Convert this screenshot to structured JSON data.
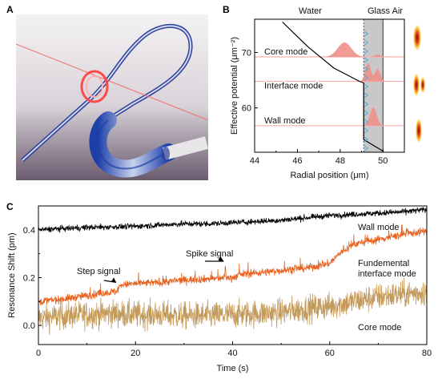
{
  "panels": {
    "a": "A",
    "b": "B",
    "c": "C"
  },
  "chart_data": [
    {
      "panel": "B",
      "type": "line",
      "xlabel": "Radial position (μm)",
      "ylabel": "Effective potential (μm⁻²)",
      "xlim": [
        44,
        51
      ],
      "ylim": [
        52,
        76
      ],
      "xticks": [
        "44",
        "46",
        "48",
        "50"
      ],
      "yticks": [
        "60",
        "70"
      ],
      "regions": [
        {
          "name": "Water",
          "x_range": [
            44,
            49.1
          ],
          "color": "#ffffff"
        },
        {
          "name": "Glass",
          "x_range": [
            49.1,
            50
          ],
          "color": "#c8c8c8"
        },
        {
          "name": "Air",
          "x_range": [
            50,
            51
          ],
          "color": "#ffffff"
        }
      ],
      "region_labels": [
        "Water",
        "Glass Air"
      ],
      "potential_curve": {
        "x": [
          45.3,
          46.5,
          47.7,
          48.9,
          49.1,
          49.1,
          50.0
        ],
        "y": [
          75.5,
          71.0,
          67.2,
          64.8,
          64.5,
          54.3,
          52.2
        ]
      },
      "mode_levels": [
        {
          "name": "Core mode",
          "y": 69.2,
          "peaks": [
            {
              "x": 48.2,
              "height": 2.6,
              "width": 0.45
            },
            {
              "x": 49.75,
              "height": 0.4,
              "width": 0.2
            }
          ]
        },
        {
          "name": "Interface mode",
          "y": 64.8,
          "peaks": [
            {
              "x": 49.3,
              "height": 3.3,
              "width": 0.18
            },
            {
              "x": 49.75,
              "height": 2.2,
              "width": 0.18
            }
          ]
        },
        {
          "name": "Wall mode",
          "y": 56.8,
          "peaks": [
            {
              "x": 49.55,
              "height": 3.3,
              "width": 0.22
            }
          ]
        }
      ],
      "colors": {
        "curve": "#000000",
        "mode_fill": "#f0908c",
        "mode_line": "#f4b0ac",
        "glass": "#c8c8c8",
        "markers": "#4aa8e0"
      }
    },
    {
      "panel": "C",
      "type": "line",
      "xlabel": "Time (s)",
      "ylabel": "Resonance Shift (pm)",
      "xlim": [
        0,
        80
      ],
      "ylim": [
        -0.08,
        0.5
      ],
      "xticks": [
        "0",
        "20",
        "40",
        "60",
        "80"
      ],
      "yticks": [
        "0.0",
        "0.2",
        "0.4"
      ],
      "series": [
        {
          "name": "Wall mode",
          "color": "#000000",
          "noise": 0.006,
          "x": [
            0,
            5,
            10,
            15,
            20,
            25,
            30,
            35,
            40,
            45,
            50,
            55,
            60,
            65,
            70,
            75,
            80
          ],
          "y": [
            0.4,
            0.405,
            0.41,
            0.412,
            0.415,
            0.42,
            0.425,
            0.425,
            0.43,
            0.435,
            0.44,
            0.45,
            0.46,
            0.465,
            0.47,
            0.475,
            0.485
          ]
        },
        {
          "name": "Fundemental interface mode",
          "color": "#e8601c",
          "noise": 0.008,
          "x": [
            0,
            5,
            10,
            15,
            16,
            17,
            20,
            25,
            30,
            35,
            40,
            42,
            45,
            50,
            55,
            58,
            60,
            62,
            65,
            70,
            75,
            80
          ],
          "y": [
            0.1,
            0.11,
            0.125,
            0.14,
            0.14,
            0.17,
            0.175,
            0.18,
            0.19,
            0.195,
            0.2,
            0.215,
            0.22,
            0.23,
            0.24,
            0.25,
            0.26,
            0.3,
            0.34,
            0.36,
            0.38,
            0.395
          ]
        },
        {
          "name": "Core mode",
          "color": "#c49a5a",
          "noise": 0.028,
          "x": [
            0,
            5,
            10,
            15,
            20,
            25,
            30,
            35,
            40,
            45,
            50,
            55,
            60,
            65,
            70,
            75,
            80
          ],
          "y": [
            0.03,
            0.04,
            0.045,
            0.05,
            0.045,
            0.045,
            0.04,
            0.04,
            0.045,
            0.05,
            0.055,
            0.07,
            0.08,
            0.1,
            0.12,
            0.13,
            0.14
          ]
        }
      ],
      "annotations": [
        {
          "text": "Step signal",
          "x": 16.5,
          "y": 0.17
        },
        {
          "text": "Spike signal",
          "x": 38.5,
          "y": 0.255
        }
      ]
    }
  ]
}
